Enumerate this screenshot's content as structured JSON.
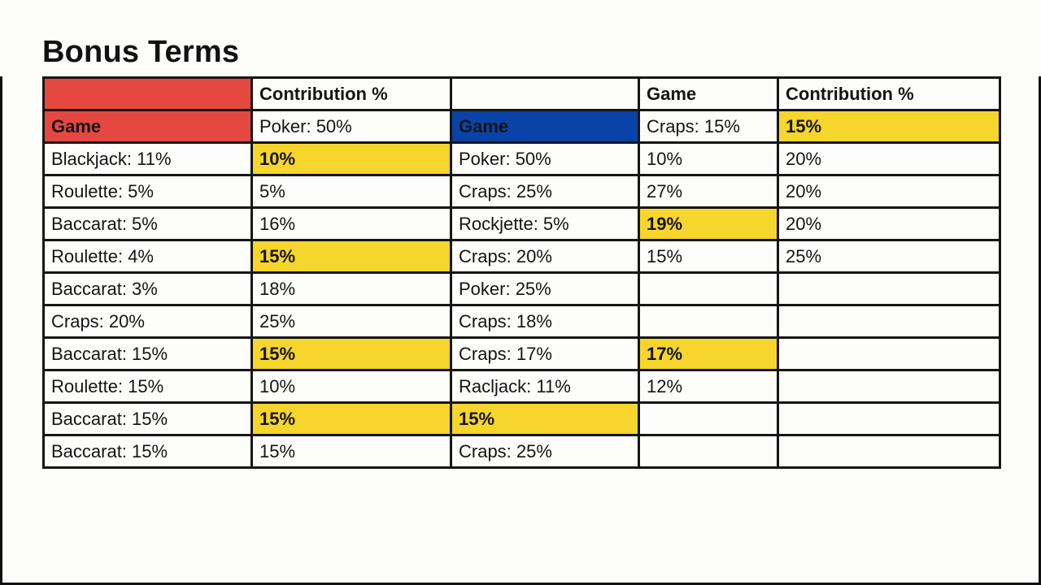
{
  "page": {
    "title": "Bonus Terms"
  },
  "colors": {
    "red_header": "#e54840",
    "blue_header": "#0a43a8",
    "yellow_highlight": "#f6d52c",
    "border": "#161616"
  },
  "table": {
    "rows": [
      {
        "cells": [
          {
            "text": "",
            "style": "fill-red"
          },
          {
            "text": "Contribution %",
            "style": "hdr"
          },
          {
            "text": "",
            "style": ""
          },
          {
            "text": "Game",
            "style": "hdr"
          },
          {
            "text": "Contribution %",
            "style": "hdr"
          }
        ]
      },
      {
        "cells": [
          {
            "text": "Game",
            "style": "fill-red"
          },
          {
            "text": "Poker: 50%",
            "style": ""
          },
          {
            "text": "Game",
            "style": "fill-blue"
          },
          {
            "text": "Craps: 15%",
            "style": ""
          },
          {
            "text": "15%",
            "style": "fill-yellow"
          }
        ]
      },
      {
        "cells": [
          {
            "text": "Blackjack: 11%",
            "style": ""
          },
          {
            "text": "10%",
            "style": "fill-yellow"
          },
          {
            "text": "Poker: 50%",
            "style": ""
          },
          {
            "text": "10%",
            "style": ""
          },
          {
            "text": "20%",
            "style": ""
          }
        ]
      },
      {
        "cells": [
          {
            "text": "Roulette: 5%",
            "style": ""
          },
          {
            "text": "5%",
            "style": ""
          },
          {
            "text": "Craps: 25%",
            "style": ""
          },
          {
            "text": "27%",
            "style": ""
          },
          {
            "text": "20%",
            "style": ""
          }
        ]
      },
      {
        "cells": [
          {
            "text": "Baccarat: 5%",
            "style": ""
          },
          {
            "text": "16%",
            "style": ""
          },
          {
            "text": "Rockjette: 5%",
            "style": ""
          },
          {
            "text": "19%",
            "style": "fill-yellow"
          },
          {
            "text": "20%",
            "style": ""
          }
        ]
      },
      {
        "cells": [
          {
            "text": "Roulette: 4%",
            "style": ""
          },
          {
            "text": "15%",
            "style": "fill-yellow"
          },
          {
            "text": "Craps: 20%",
            "style": ""
          },
          {
            "text": "15%",
            "style": ""
          },
          {
            "text": "25%",
            "style": ""
          }
        ]
      },
      {
        "cells": [
          {
            "text": "Baccarat: 3%",
            "style": ""
          },
          {
            "text": "18%",
            "style": ""
          },
          {
            "text": "Poker: 25%",
            "style": ""
          },
          {
            "text": "",
            "style": ""
          },
          {
            "text": "",
            "style": ""
          }
        ]
      },
      {
        "cells": [
          {
            "text": "Craps: 20%",
            "style": ""
          },
          {
            "text": "25%",
            "style": ""
          },
          {
            "text": "Craps: 18%",
            "style": ""
          },
          {
            "text": "",
            "style": ""
          },
          {
            "text": "",
            "style": ""
          }
        ]
      },
      {
        "cells": [
          {
            "text": "Baccarat: 15%",
            "style": ""
          },
          {
            "text": "15%",
            "style": "fill-yellow"
          },
          {
            "text": "Craps: 17%",
            "style": ""
          },
          {
            "text": "17%",
            "style": "fill-yellow"
          },
          {
            "text": "",
            "style": ""
          }
        ]
      },
      {
        "cells": [
          {
            "text": "Roulette: 15%",
            "style": ""
          },
          {
            "text": "10%",
            "style": ""
          },
          {
            "text": "Racljack: 11%",
            "style": ""
          },
          {
            "text": "12%",
            "style": ""
          },
          {
            "text": "",
            "style": ""
          }
        ]
      },
      {
        "cells": [
          {
            "text": "Baccarat: 15%",
            "style": ""
          },
          {
            "text": "15%",
            "style": "fill-yellow"
          },
          {
            "text": "15%",
            "style": "fill-yellow"
          },
          {
            "text": "",
            "style": ""
          },
          {
            "text": "",
            "style": ""
          }
        ]
      },
      {
        "cells": [
          {
            "text": "Baccarat: 15%",
            "style": ""
          },
          {
            "text": "15%",
            "style": ""
          },
          {
            "text": "Craps: 25%",
            "style": ""
          },
          {
            "text": "",
            "style": ""
          },
          {
            "text": "",
            "style": ""
          }
        ]
      }
    ]
  }
}
